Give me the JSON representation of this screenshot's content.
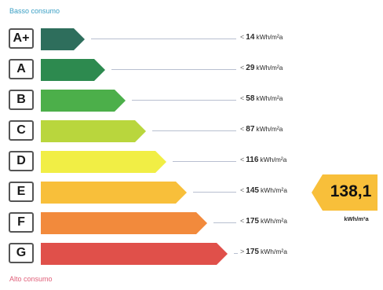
{
  "labels": {
    "low_consumption": "Basso consumo",
    "high_consumption": "Alto consumo"
  },
  "classes": [
    {
      "letter": "A+",
      "comparator": "<",
      "threshold": "14",
      "unit": "kWh/m²a",
      "color": "#2e6e5c"
    },
    {
      "letter": "A",
      "comparator": "<",
      "threshold": "29",
      "unit": "kWh/m²a",
      "color": "#2d8a4f"
    },
    {
      "letter": "B",
      "comparator": "<",
      "threshold": "58",
      "unit": "kWh/m²a",
      "color": "#4caf4a"
    },
    {
      "letter": "C",
      "comparator": "<",
      "threshold": "87",
      "unit": "kWh/m²a",
      "color": "#b9d63d"
    },
    {
      "letter": "D",
      "comparator": "<",
      "threshold": "116",
      "unit": "kWh/m²a",
      "color": "#f1ee45"
    },
    {
      "letter": "E",
      "comparator": "<",
      "threshold": "145",
      "unit": "kWh/m²a",
      "color": "#f8bf3a"
    },
    {
      "letter": "F",
      "comparator": "<",
      "threshold": "175",
      "unit": "kWh/m²a",
      "color": "#f28a3c"
    },
    {
      "letter": "G",
      "comparator": ">",
      "threshold": "175",
      "unit": "kWh/m²a",
      "color": "#e0504a"
    }
  ],
  "result": {
    "value": "138,1",
    "unit": "kWh/m²a",
    "class": "E",
    "color": "#f8bf3a"
  }
}
